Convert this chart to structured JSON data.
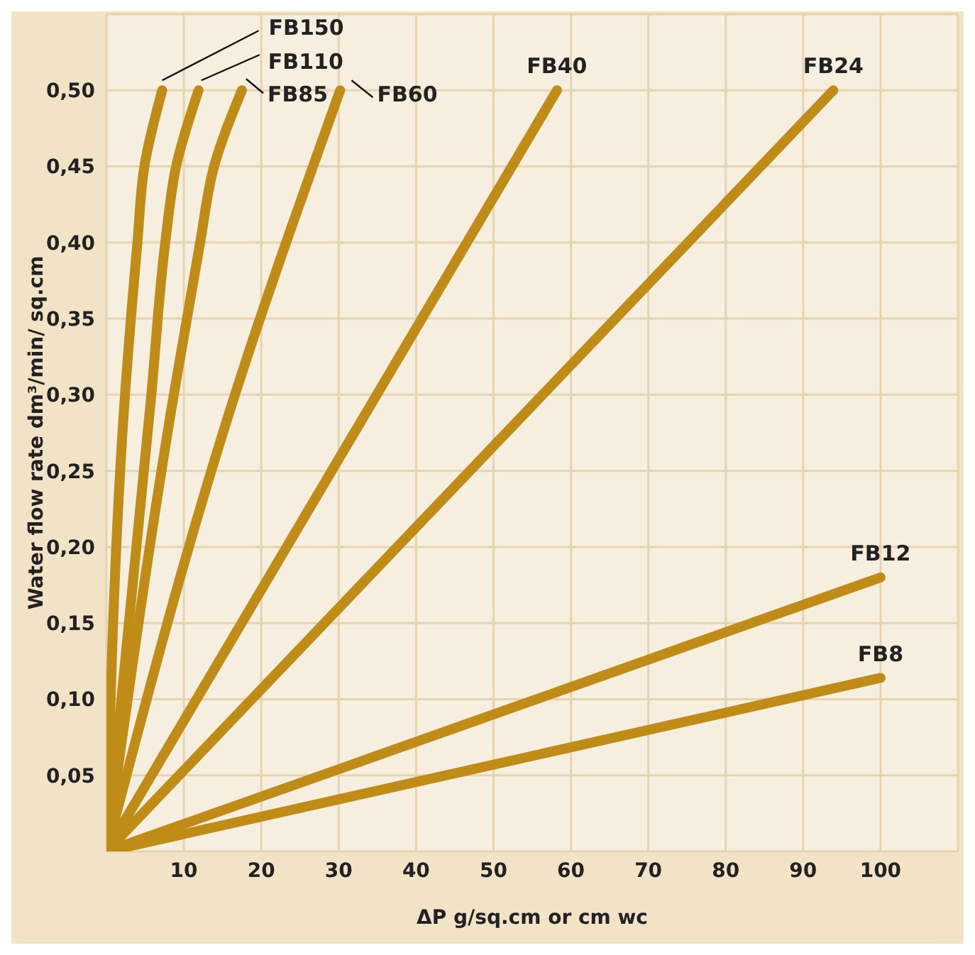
{
  "chart_data": {
    "type": "line",
    "xlabel": "ΔP g/sq.cm or cm wc",
    "ylabel": "Water flow rate dm³/min/ sq.cm",
    "xlim": [
      0,
      110
    ],
    "ylim": [
      0,
      0.55
    ],
    "xticks": [
      10,
      20,
      30,
      40,
      50,
      60,
      70,
      80,
      90,
      100
    ],
    "yticks": [
      {
        "value": 0.05,
        "label": "0,05"
      },
      {
        "value": 0.1,
        "label": "0,10"
      },
      {
        "value": 0.15,
        "label": "0,15"
      },
      {
        "value": 0.2,
        "label": "0,20"
      },
      {
        "value": 0.25,
        "label": "0,25"
      },
      {
        "value": 0.3,
        "label": "0,30"
      },
      {
        "value": 0.35,
        "label": "0,35"
      },
      {
        "value": 0.4,
        "label": "0,40"
      },
      {
        "value": 0.45,
        "label": "0,45"
      },
      {
        "value": 0.5,
        "label": "0,50"
      }
    ],
    "grid": true,
    "legend": false,
    "marker": "none",
    "line_style": "solid",
    "series": [
      {
        "name": "FB150",
        "color": "#c08c18",
        "x": [
          0,
          2.4,
          4,
          4.9,
          7.2
        ],
        "values": [
          0,
          0.3,
          0.4,
          0.45,
          0.5
        ]
      },
      {
        "name": "FB110",
        "color": "#c08c18",
        "x": [
          0,
          5.8,
          7.6,
          9,
          11.9
        ],
        "values": [
          0,
          0.3,
          0.4,
          0.45,
          0.5
        ]
      },
      {
        "name": "FB85",
        "color": "#c08c18",
        "x": [
          0,
          8.7,
          12.1,
          13.9,
          17.5
        ],
        "values": [
          0,
          0.3,
          0.4,
          0.45,
          0.5
        ]
      },
      {
        "name": "FB60",
        "color": "#c08c18",
        "x": [
          0,
          16.6,
          30.2
        ],
        "values": [
          0,
          0.3,
          0.5
        ]
      },
      {
        "name": "FB40",
        "color": "#c08c18",
        "x": [
          0,
          58.2
        ],
        "values": [
          0,
          0.5
        ]
      },
      {
        "name": "FB24",
        "color": "#c08c18",
        "x": [
          0,
          93.9
        ],
        "values": [
          0,
          0.5
        ]
      },
      {
        "name": "FB12",
        "color": "#c08c18",
        "x": [
          0,
          100
        ],
        "values": [
          0,
          0.18
        ]
      },
      {
        "name": "FB8",
        "color": "#c08c18",
        "x": [
          0,
          100
        ],
        "values": [
          0,
          0.114
        ]
      }
    ]
  }
}
